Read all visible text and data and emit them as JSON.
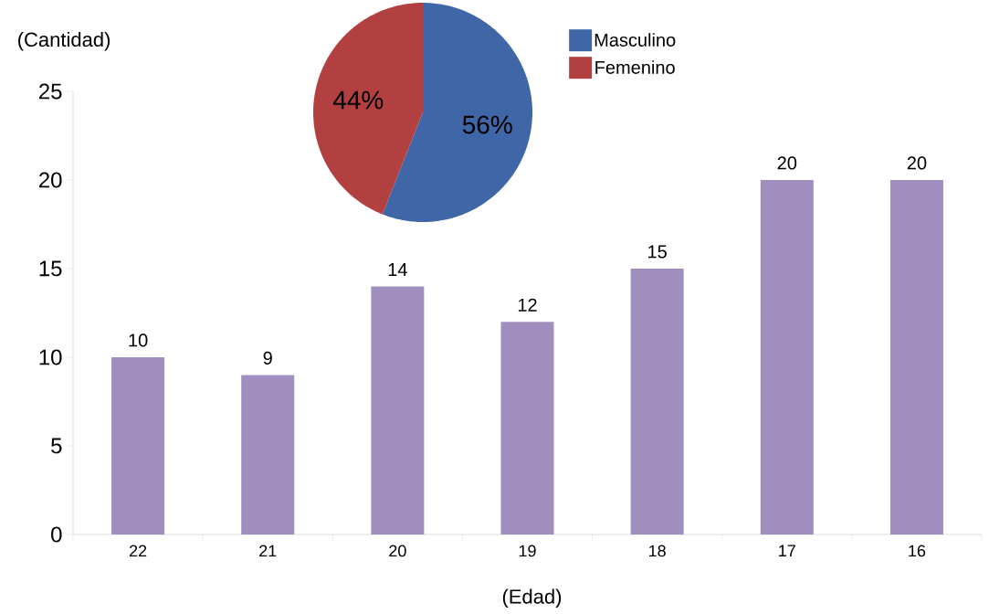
{
  "chart_data": [
    {
      "type": "bar",
      "xlabel": "(Edad)",
      "ylabel": "(Cantidad)",
      "categories": [
        "22",
        "21",
        "20",
        "19",
        "18",
        "17",
        "16"
      ],
      "values": [
        10,
        9,
        14,
        12,
        15,
        20,
        20
      ],
      "color": "#a08fbe",
      "ylim": [
        0,
        25
      ],
      "yticks": [
        0,
        5,
        10,
        15,
        20,
        25
      ],
      "data_labels": true,
      "grid": false
    },
    {
      "type": "pie",
      "categories": [
        "Masculino",
        "Femenino"
      ],
      "values": [
        56,
        44
      ],
      "colors": [
        "#3f67a8",
        "#b24040"
      ],
      "value_labels": [
        "56%",
        "44%"
      ],
      "legend": "right"
    }
  ]
}
